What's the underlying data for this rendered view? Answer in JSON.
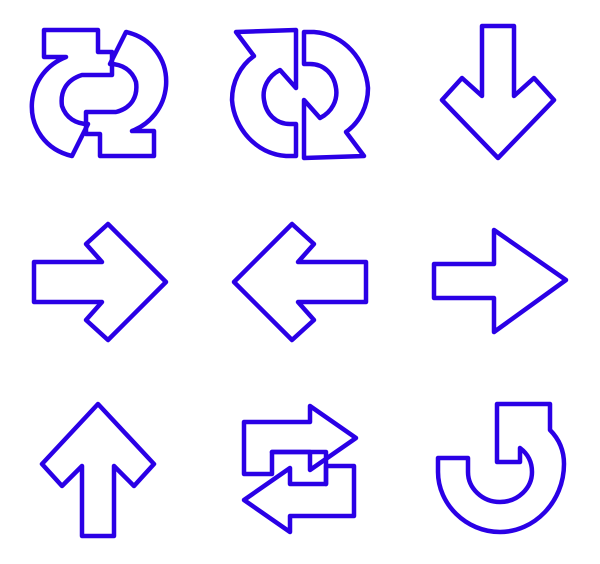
{
  "sheet": {
    "stroke_color": "#2a00e6",
    "background": "#ffffff"
  },
  "icons": [
    {
      "name": "refresh-square-icon"
    },
    {
      "name": "refresh-angled-icon"
    },
    {
      "name": "arrow-down-icon"
    },
    {
      "name": "arrow-right-rounded-icon"
    },
    {
      "name": "arrow-left-rounded-icon"
    },
    {
      "name": "arrow-right-triangle-icon"
    },
    {
      "name": "arrow-up-icon"
    },
    {
      "name": "swap-arrows-icon"
    },
    {
      "name": "undo-arrow-icon"
    }
  ]
}
